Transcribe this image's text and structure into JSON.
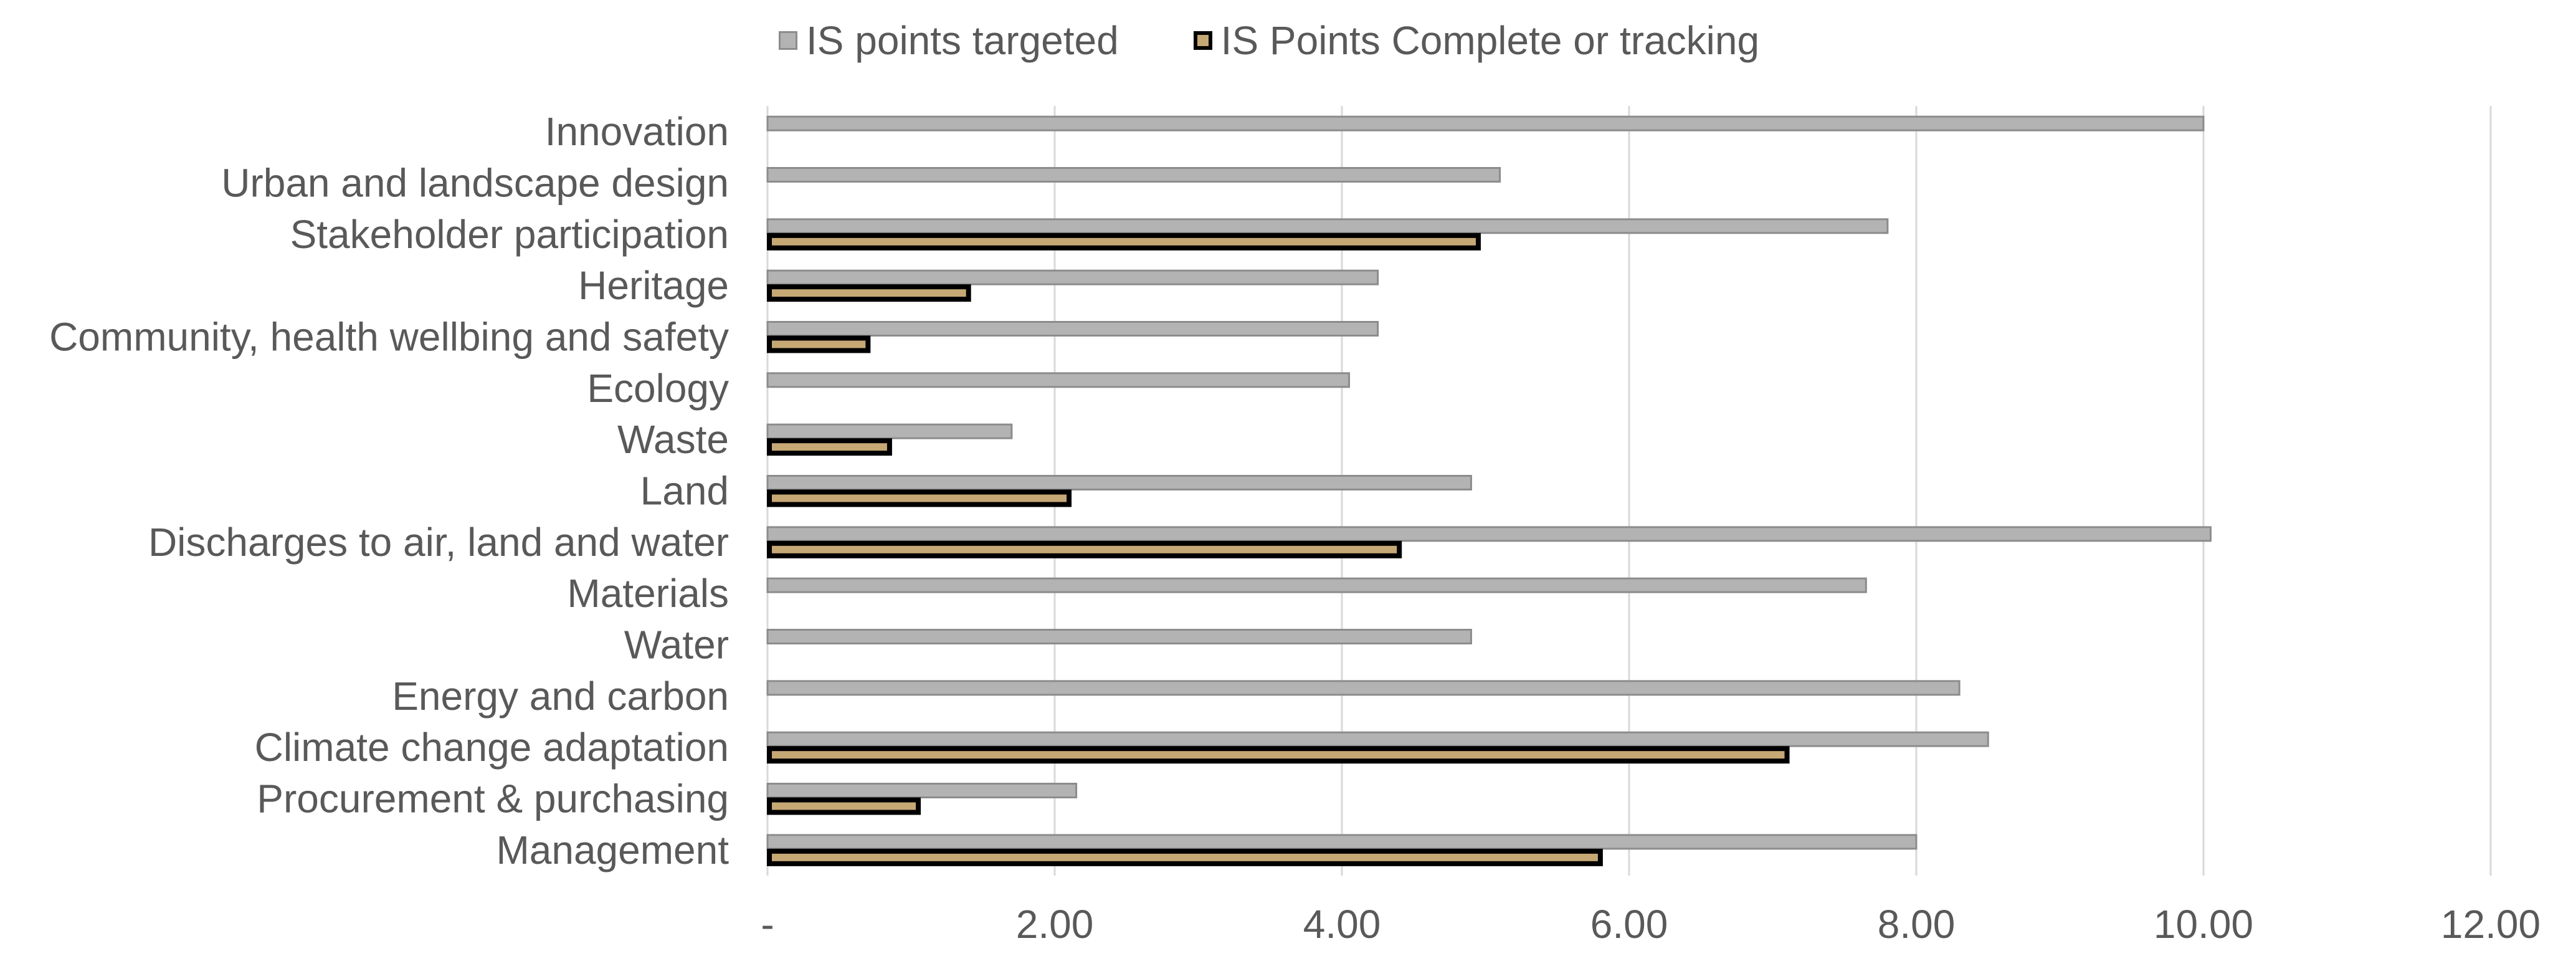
{
  "chart_data": {
    "type": "bar",
    "orientation": "horizontal",
    "categories": [
      "Innovation",
      "Urban and landscape design",
      "Stakeholder participation",
      "Heritage",
      "Community, health wellbing and safety",
      "Ecology",
      "Waste",
      "Land",
      "Discharges to air, land and water",
      "Materials",
      "Water",
      "Energy and carbon",
      "Climate change adaptation",
      "Procurement & purchasing",
      "Management"
    ],
    "series": [
      {
        "name": "IS points targeted",
        "values": [
          10.0,
          5.1,
          7.8,
          4.25,
          4.25,
          4.05,
          1.7,
          4.9,
          10.05,
          7.65,
          4.9,
          8.3,
          8.5,
          2.15,
          8.0
        ],
        "color": "#b3b3b3",
        "stroke": "#8c8c8c"
      },
      {
        "name": "IS Points Complete or tracking",
        "values": [
          0,
          0,
          4.95,
          1.4,
          0.7,
          0,
          0.85,
          2.1,
          4.4,
          0,
          0,
          0,
          7.1,
          1.05,
          5.8
        ],
        "color": "#c6a875",
        "stroke": "#000000"
      }
    ],
    "xlim": [
      0,
      12
    ],
    "xticks": [
      "-",
      "2.00",
      "4.00",
      "6.00",
      "8.00",
      "10.00",
      "12.00"
    ],
    "xtick_values": [
      0,
      2,
      4,
      6,
      8,
      10,
      12
    ],
    "grid": "vertical",
    "legend": "top-center",
    "title": "",
    "xlabel": "",
    "ylabel": ""
  }
}
